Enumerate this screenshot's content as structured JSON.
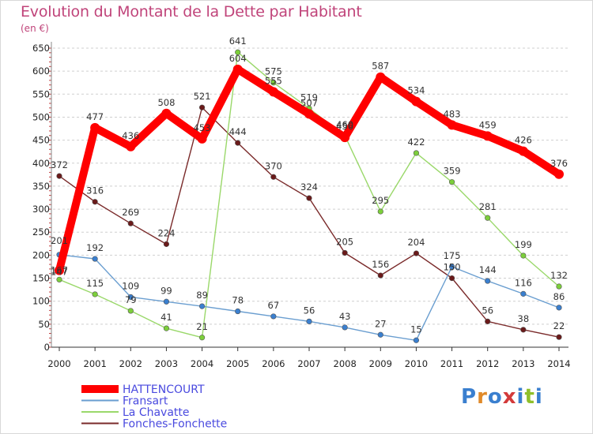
{
  "header": {
    "title": "Evolution du Montant de la Dette par Habitant",
    "subtitle": "(en €)"
  },
  "logo": {
    "text": "Proxiti",
    "colors": [
      "#3a7fcf",
      "#e08a2a",
      "#3a7fcf",
      "#d33a3a",
      "#3a7fcf",
      "#8fbf2a",
      "#3a7fcf"
    ]
  },
  "chart_data": {
    "type": "line",
    "title": "Evolution du Montant de la Dette par Habitant",
    "subtitle": "(en €)",
    "x": [
      "2000",
      "2001",
      "2002",
      "2003",
      "2004",
      "2005",
      "2006",
      "2007",
      "2008",
      "2009",
      "2010",
      "2011",
      "2012",
      "2013",
      "2014"
    ],
    "y_ticks": [
      0,
      50,
      100,
      150,
      200,
      250,
      300,
      350,
      400,
      450,
      500,
      550,
      600,
      650
    ],
    "ylim": [
      0,
      650
    ],
    "grid": "horizontal dashed",
    "legend_position": "bottom-left",
    "series": [
      {
        "name": "HATTENCOURT",
        "color": "#ff0000",
        "marker": "#ff0000",
        "values": [
          167,
          477,
          436,
          508,
          453,
          604,
          555,
          507,
          456,
          587,
          534,
          483,
          459,
          426,
          376
        ]
      },
      {
        "name": "Fransart",
        "color": "#6a9ed0",
        "marker": "#3a7fcf",
        "values": [
          201,
          192,
          109,
          99,
          89,
          78,
          67,
          56,
          43,
          27,
          15,
          175,
          144,
          116,
          86
        ]
      },
      {
        "name": "La Chavatte",
        "color": "#9ad86a",
        "marker": "#7ccf3a",
        "values": [
          147,
          115,
          79,
          41,
          21,
          641,
          575,
          519,
          460,
          295,
          422,
          359,
          281,
          199,
          132
        ]
      },
      {
        "name": "Fonches-Fonchette",
        "color": "#7a2a2a",
        "marker": "#6a1a1a",
        "values": [
          372,
          316,
          269,
          224,
          521,
          444,
          370,
          324,
          205,
          156,
          204,
          150,
          56,
          38,
          22
        ],
        "segments": [
          [
            0,
            3
          ],
          [
            3,
            14
          ]
        ]
      }
    ],
    "data_labels": [
      [
        "167",
        "477",
        "436",
        "508",
        "453",
        "604",
        "555",
        "507",
        "456",
        "587",
        "534",
        "483",
        "459",
        "426",
        "376"
      ],
      [
        "201",
        "192",
        "109",
        "99",
        "89",
        "78",
        "67",
        "56",
        "43",
        "27",
        "15",
        "175",
        "144",
        "116",
        "86"
      ],
      [
        "147",
        "115",
        "79",
        "41",
        "21",
        "641",
        "575",
        "519",
        "460",
        "295",
        "422",
        "359",
        "281",
        "199",
        "132"
      ],
      [
        "372",
        "316",
        "269",
        "224",
        "521",
        "444",
        "370",
        "324",
        "205",
        "156",
        "204",
        "150",
        "56",
        "38",
        "22"
      ]
    ]
  }
}
